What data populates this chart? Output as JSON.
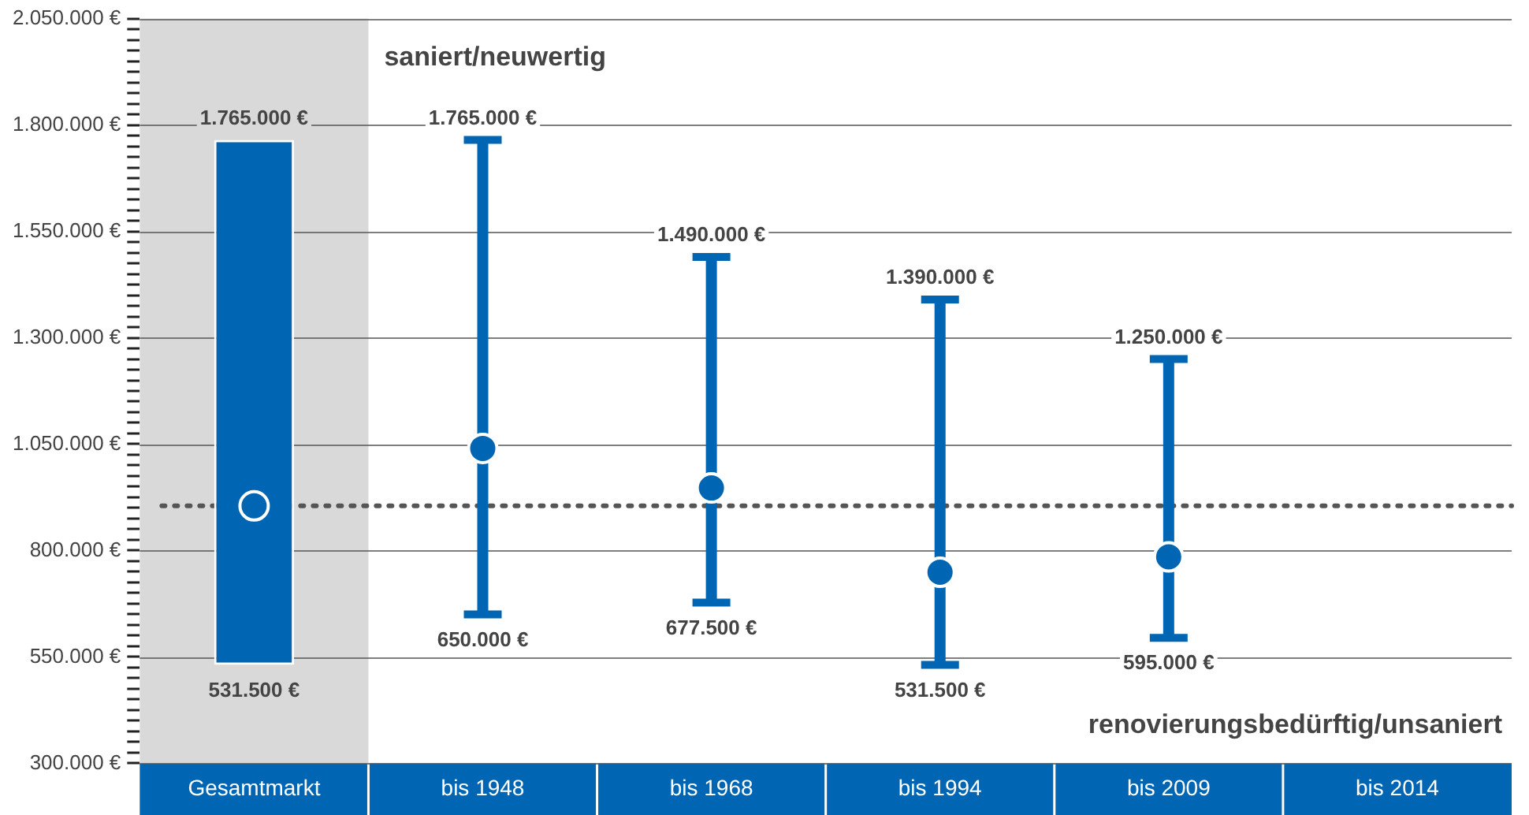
{
  "chart_data": {
    "type": "bar",
    "categories": [
      "Gesamtmarkt",
      "bis 1948",
      "bis 1968",
      "bis 1994",
      "bis 2009",
      "bis 2014"
    ],
    "series": [
      {
        "color": "#0066b3",
        "base": [
          531500,
          null,
          null,
          null,
          null,
          null
        ],
        "values": [
          1233500,
          null,
          null,
          null,
          null,
          null
        ]
      },
      {
        "type": "scatter",
        "color": "#0066b3",
        "marker": "circle",
        "x": [
          "Gesamtmarkt",
          "bis 1948",
          "bis 1968",
          "bis 1994",
          "bis 2009",
          "bis 2014"
        ],
        "values": [
          905000,
          1040000,
          947000,
          749000,
          785000,
          null
        ],
        "errors": [
          null,
          [
            650000,
            1765000
          ],
          [
            677500,
            1490000
          ],
          [
            531500,
            1390000
          ],
          [
            595000,
            1250000
          ],
          null
        ]
      }
    ],
    "ylim": [
      300000,
      2050000
    ],
    "yticks": [
      {
        "value": 300000,
        "label": "300.000 €"
      },
      {
        "value": 325000,
        "label": null
      },
      {
        "value": 350000,
        "label": null
      },
      {
        "value": 375000,
        "label": null
      },
      {
        "value": 400000,
        "label": null
      },
      {
        "value": 425000,
        "label": null
      },
      {
        "value": 450000,
        "label": null
      },
      {
        "value": 475000,
        "label": null
      },
      {
        "value": 500000,
        "label": null
      },
      {
        "value": 525000,
        "label": null
      },
      {
        "value": 550000,
        "label": "550.000 €"
      },
      {
        "value": 575000,
        "label": null
      },
      {
        "value": 600000,
        "label": null
      },
      {
        "value": 625000,
        "label": null
      },
      {
        "value": 650000,
        "label": null
      },
      {
        "value": 675000,
        "label": null
      },
      {
        "value": 700000,
        "label": null
      },
      {
        "value": 725000,
        "label": null
      },
      {
        "value": 750000,
        "label": null
      },
      {
        "value": 775000,
        "label": null
      },
      {
        "value": 800000,
        "label": "800.000 €"
      },
      {
        "value": 825000,
        "label": null
      },
      {
        "value": 850000,
        "label": null
      },
      {
        "value": 875000,
        "label": null
      },
      {
        "value": 900000,
        "label": null
      },
      {
        "value": 925000,
        "label": null
      },
      {
        "value": 950000,
        "label": null
      },
      {
        "value": 975000,
        "label": null
      },
      {
        "value": 1000000,
        "label": null
      },
      {
        "value": 1025000,
        "label": null
      },
      {
        "value": 1050000,
        "label": "1.050.000 €"
      },
      {
        "value": 1075000,
        "label": null
      },
      {
        "value": 1100000,
        "label": null
      },
      {
        "value": 1125000,
        "label": null
      },
      {
        "value": 1150000,
        "label": null
      },
      {
        "value": 1175000,
        "label": null
      },
      {
        "value": 1200000,
        "label": null
      },
      {
        "value": 1225000,
        "label": null
      },
      {
        "value": 1250000,
        "label": null
      },
      {
        "value": 1275000,
        "label": null
      },
      {
        "value": 1300000,
        "label": "1.300.000 €"
      },
      {
        "value": 1325000,
        "label": null
      },
      {
        "value": 1350000,
        "label": null
      },
      {
        "value": 1375000,
        "label": null
      },
      {
        "value": 1400000,
        "label": null
      },
      {
        "value": 1425000,
        "label": null
      },
      {
        "value": 1450000,
        "label": null
      },
      {
        "value": 1475000,
        "label": null
      },
      {
        "value": 1500000,
        "label": null
      },
      {
        "value": 1525000,
        "label": null
      },
      {
        "value": 1550000,
        "label": "1.550.000 €"
      },
      {
        "value": 1575000,
        "label": null
      },
      {
        "value": 1600000,
        "label": null
      },
      {
        "value": 1625000,
        "label": null
      },
      {
        "value": 1650000,
        "label": null
      },
      {
        "value": 1675000,
        "label": null
      },
      {
        "value": 1700000,
        "label": null
      },
      {
        "value": 1725000,
        "label": null
      },
      {
        "value": 1750000,
        "label": null
      },
      {
        "value": 1775000,
        "label": null
      },
      {
        "value": 1800000,
        "label": "1.800.000 €"
      },
      {
        "value": 1825000,
        "label": null
      },
      {
        "value": 1850000,
        "label": null
      },
      {
        "value": 1875000,
        "label": null
      },
      {
        "value": 1900000,
        "label": null
      },
      {
        "value": 1925000,
        "label": null
      },
      {
        "value": 1950000,
        "label": null
      },
      {
        "value": 1975000,
        "label": null
      },
      {
        "value": 2000000,
        "label": null
      },
      {
        "value": 2025000,
        "label": null
      },
      {
        "value": 2050000,
        "label": "2.050.000 €"
      }
    ],
    "grid": "y",
    "ref_lines": [
      {
        "axis": "y",
        "value": 905000,
        "color": "#555555",
        "line_style": "dotted"
      }
    ],
    "bands": [
      {
        "axis": "x",
        "from": "Gesamtmarkt",
        "to": "Gesamtmarkt",
        "color": "#d9d9d9"
      }
    ],
    "annotations": [
      "saniert/neuwertig",
      "renovierungsbedürftig/unsaniert",
      {
        "text": "1.765.000 €",
        "x": "Gesamtmarkt",
        "y": 1765000
      },
      {
        "text": "531.500 €",
        "x": "Gesamtmarkt",
        "y": 531500
      },
      {
        "text": "1.765.000 €",
        "x": "bis 1948",
        "y": 1765000
      },
      {
        "text": "650.000 €",
        "x": "bis 1948",
        "y": 650000
      },
      {
        "text": "1.490.000 €",
        "x": "bis 1968",
        "y": 1490000
      },
      {
        "text": "677.500 €",
        "x": "bis 1968",
        "y": 677500
      },
      {
        "text": "1.390.000 €",
        "x": "bis 1994",
        "y": 1390000
      },
      {
        "text": "531.500 €",
        "x": "bis 1994",
        "y": 531500
      },
      {
        "text": "1.250.000 €",
        "x": "bis 2009",
        "y": 1250000
      },
      {
        "text": "595.000 €",
        "x": "bis 2009",
        "y": 595000
      }
    ]
  }
}
